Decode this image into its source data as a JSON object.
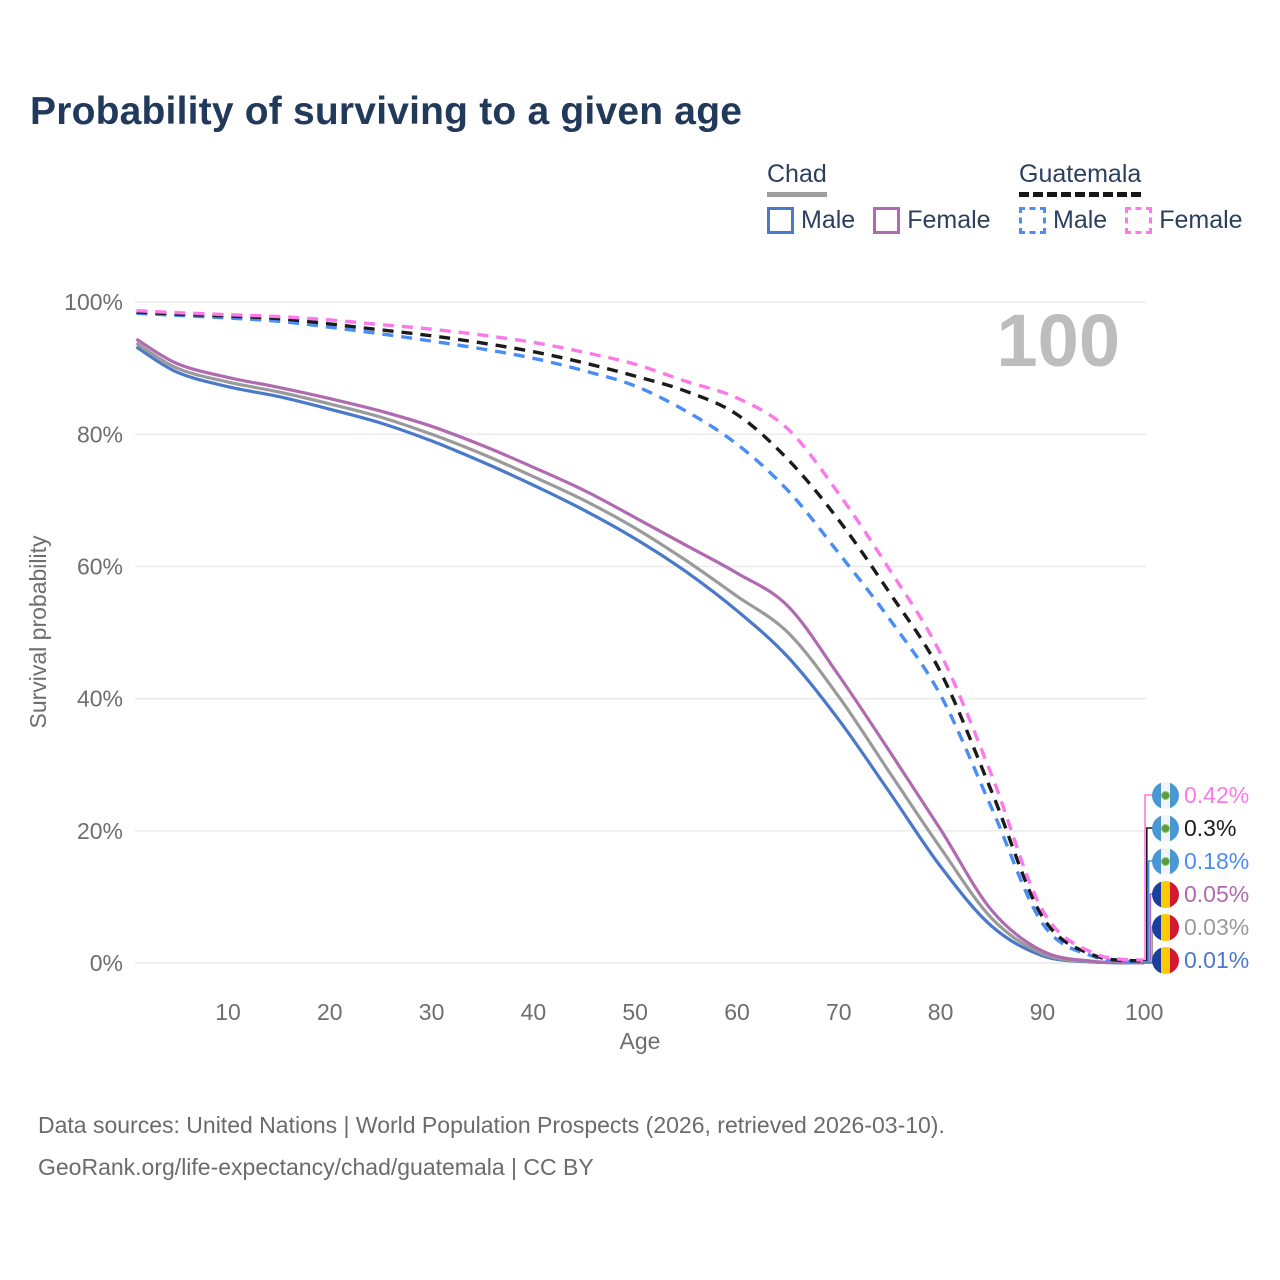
{
  "title": "Probability of surviving to a given age",
  "watermark": "100",
  "legend": {
    "groups": [
      {
        "label": "Chad",
        "line_style": "solid",
        "line_color": "#9e9e9e",
        "items": [
          {
            "label": "Male",
            "color": "#4b79c9",
            "style": "solid"
          },
          {
            "label": "Female",
            "color": "#b06ab0",
            "style": "solid"
          }
        ]
      },
      {
        "label": "Guatemala",
        "line_style": "dashed",
        "line_color": "#161616",
        "items": [
          {
            "label": "Male",
            "color": "#4a8df5",
            "style": "dashed"
          },
          {
            "label": "Female",
            "color": "#fb79e8",
            "style": "dashed"
          }
        ]
      }
    ]
  },
  "chart_data": {
    "type": "line",
    "title": "Probability of surviving to a given age",
    "xlabel": "Age",
    "ylabel": "Survival probability",
    "xlim": [
      0,
      100
    ],
    "ylim": [
      0,
      100
    ],
    "grid": "horizontal",
    "x_ticks": [
      10,
      20,
      30,
      40,
      50,
      60,
      70,
      80,
      90,
      100
    ],
    "y_ticks": [
      "0%",
      "20%",
      "40%",
      "60%",
      "80%",
      "100%"
    ],
    "x": [
      1,
      5,
      10,
      15,
      20,
      25,
      30,
      35,
      40,
      45,
      50,
      55,
      60,
      65,
      70,
      75,
      80,
      85,
      90,
      95,
      100
    ],
    "series": [
      {
        "name": "Chad Male",
        "color": "#4b79c9",
        "dash": false,
        "values": [
          93.2,
          89.4,
          87.2,
          85.7,
          83.8,
          81.7,
          79.0,
          75.8,
          72.3,
          68.5,
          64.2,
          59.2,
          53.3,
          46.3,
          36.8,
          25.8,
          14.6,
          5.6,
          1.1,
          0.15,
          0.01
        ]
      },
      {
        "name": "Chad (all)",
        "color": "#9a9a9a",
        "dash": false,
        "values": [
          93.8,
          90.0,
          87.9,
          86.4,
          84.6,
          82.6,
          80.0,
          77.0,
          73.6,
          70.0,
          65.8,
          60.9,
          55.5,
          50.0,
          40.3,
          28.8,
          17.4,
          6.8,
          1.4,
          0.2,
          0.03
        ]
      },
      {
        "name": "Chad Female",
        "color": "#b06ab0",
        "dash": false,
        "values": [
          94.4,
          90.7,
          88.6,
          87.1,
          85.4,
          83.5,
          81.2,
          78.3,
          75.0,
          71.5,
          67.4,
          63.2,
          59.0,
          54.0,
          43.5,
          32.0,
          20.2,
          8.0,
          1.8,
          0.25,
          0.05
        ]
      },
      {
        "name": "Guatemala Male",
        "color": "#4a8df5",
        "dash": true,
        "values": [
          98.3,
          98.0,
          97.6,
          97.1,
          96.2,
          95.2,
          94.1,
          92.9,
          91.5,
          89.6,
          87.3,
          83.5,
          78.5,
          71.5,
          62.0,
          52.0,
          40.5,
          23.5,
          6.0,
          1.0,
          0.18
        ]
      },
      {
        "name": "Guatemala (all)",
        "color": "#1b1b1b",
        "dash": true,
        "values": [
          98.5,
          98.2,
          97.9,
          97.5,
          96.7,
          95.8,
          94.9,
          93.8,
          92.5,
          90.8,
          88.8,
          86.5,
          83.0,
          76.2,
          67.0,
          56.0,
          44.0,
          26.0,
          7.0,
          1.2,
          0.3
        ]
      },
      {
        "name": "Guatemala Female",
        "color": "#fb79e8",
        "dash": true,
        "values": [
          98.7,
          98.4,
          98.1,
          97.8,
          97.3,
          96.6,
          95.9,
          95.0,
          93.9,
          92.4,
          90.6,
          88.0,
          85.5,
          80.8,
          71.0,
          59.5,
          46.8,
          28.5,
          8.0,
          1.5,
          0.42
        ]
      }
    ]
  },
  "end_labels": [
    {
      "text": "0.42%",
      "color": "#fb79e8",
      "series": "Guatemala Female",
      "flag": "guatemala"
    },
    {
      "text": "0.3%",
      "color": "#1b1b1b",
      "series": "Guatemala (all)",
      "flag": "guatemala"
    },
    {
      "text": "0.18%",
      "color": "#4a8df5",
      "series": "Guatemala Male",
      "flag": "guatemala"
    },
    {
      "text": "0.05%",
      "color": "#b06ab0",
      "series": "Chad Female",
      "flag": "chad"
    },
    {
      "text": "0.03%",
      "color": "#9a9a9a",
      "series": "Chad (all)",
      "flag": "chad"
    },
    {
      "text": "0.01%",
      "color": "#4b79c9",
      "series": "Chad Male",
      "flag": "chad"
    }
  ],
  "flags": {
    "guatemala": {
      "stripes": [
        "#4a98d2",
        "#f2f4f6",
        "#4a98d2"
      ],
      "emblem": "#5a9e3a"
    },
    "chad": {
      "stripes": [
        "#1c3f9f",
        "#fecb00",
        "#d11a32"
      ],
      "emblem": null
    }
  },
  "footer": {
    "line1": "Data sources: United Nations | World Population Prospects (2026, retrieved 2026-03-10).",
    "line2": "GeoRank.org/life-expectancy/chad/guatemala | CC BY"
  }
}
